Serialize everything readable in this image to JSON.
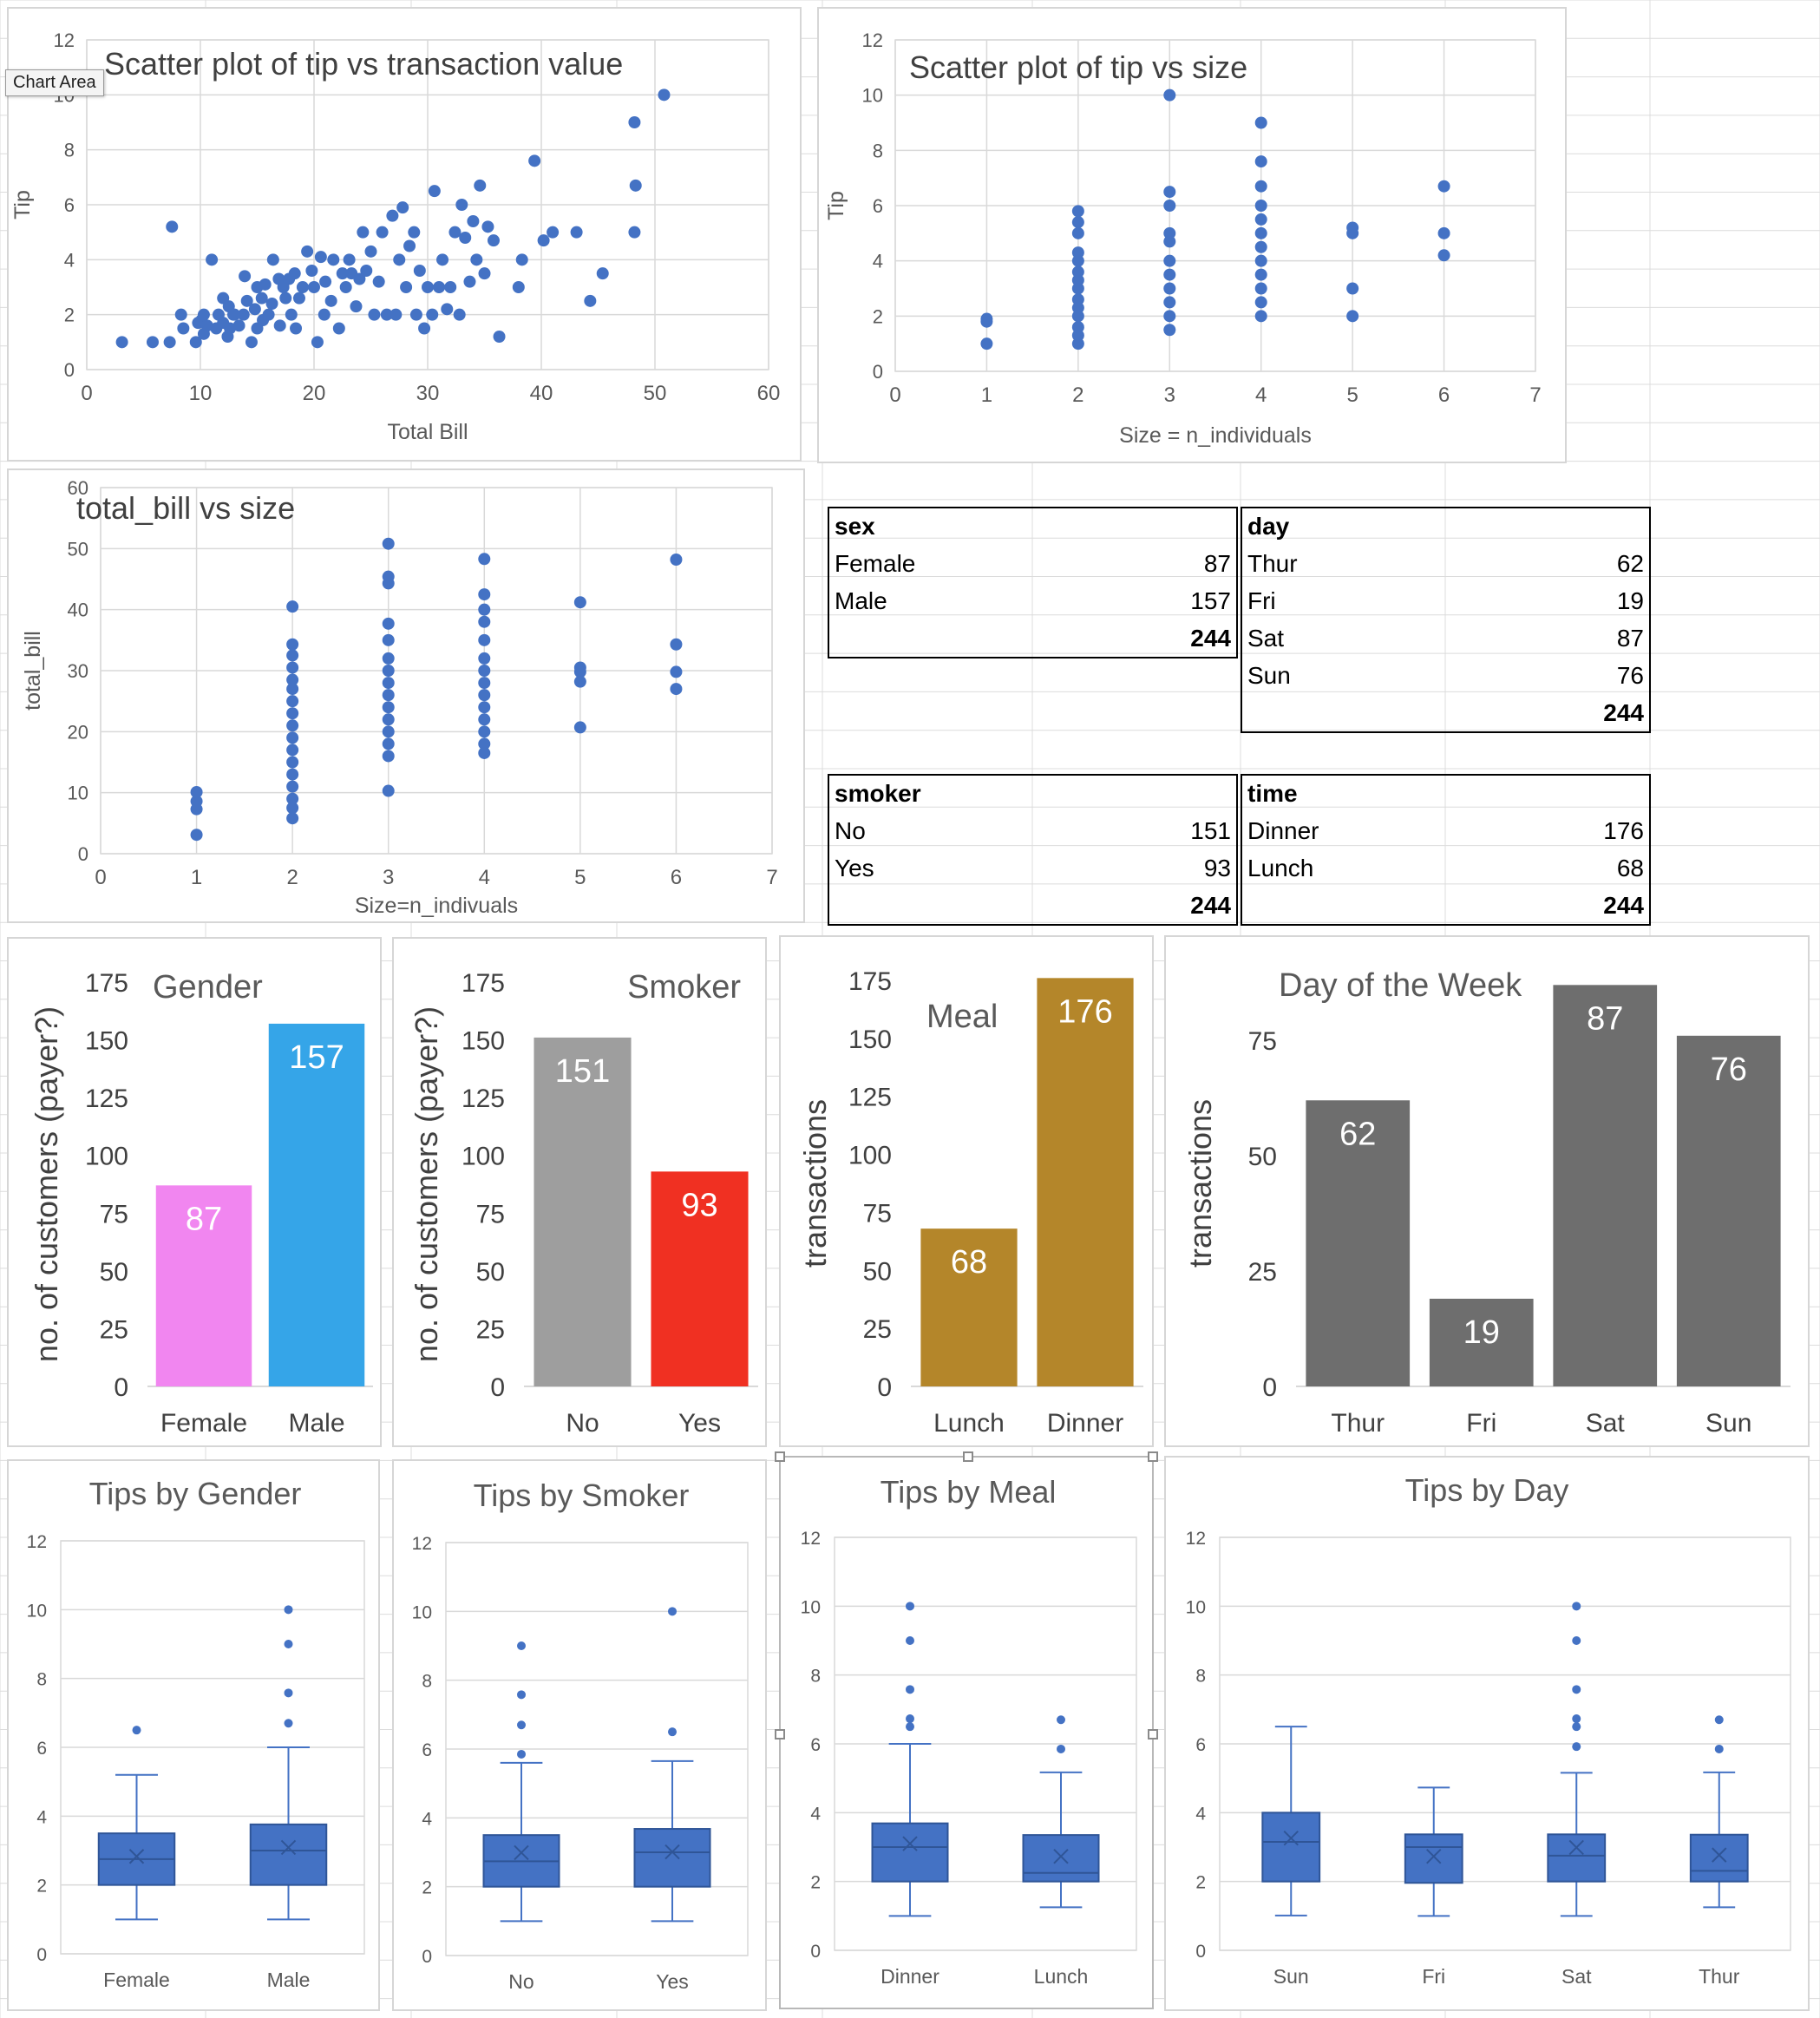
{
  "window": {
    "tooltip": "Chart Area"
  },
  "chart_data": [
    {
      "id": "scatter_tip_bill",
      "type": "scatter",
      "title": "Scatter plot of tip vs transaction value",
      "xlabel": "Total Bill",
      "ylabel": "Tip",
      "xlim": [
        0,
        60
      ],
      "ylim": [
        0,
        12
      ],
      "xticks": [
        0,
        10,
        20,
        30,
        40,
        50,
        60
      ],
      "yticks": [
        0,
        2,
        4,
        6,
        8,
        10,
        12
      ],
      "grid": true,
      "color": "#4472C4",
      "points": [
        [
          3.1,
          1.0
        ],
        [
          5.8,
          1.0
        ],
        [
          7.3,
          1.0
        ],
        [
          7.5,
          5.2
        ],
        [
          8.3,
          2.0
        ],
        [
          8.5,
          1.5
        ],
        [
          9.6,
          1.0
        ],
        [
          9.8,
          1.7
        ],
        [
          10.1,
          1.8
        ],
        [
          10.3,
          1.3
        ],
        [
          10.3,
          2.0
        ],
        [
          10.6,
          1.6
        ],
        [
          11.0,
          4.0
        ],
        [
          11.4,
          1.5
        ],
        [
          11.6,
          2.0
        ],
        [
          12.0,
          1.7
        ],
        [
          12.0,
          2.6
        ],
        [
          12.4,
          1.2
        ],
        [
          12.5,
          2.3
        ],
        [
          12.6,
          1.5
        ],
        [
          12.9,
          2.0
        ],
        [
          13.0,
          2.0
        ],
        [
          13.4,
          1.6
        ],
        [
          13.8,
          2.0
        ],
        [
          13.9,
          3.4
        ],
        [
          14.1,
          2.5
        ],
        [
          14.5,
          1.0
        ],
        [
          14.8,
          2.2
        ],
        [
          15.0,
          1.5
        ],
        [
          15.0,
          3.0
        ],
        [
          15.4,
          2.6
        ],
        [
          15.5,
          1.8
        ],
        [
          15.7,
          3.1
        ],
        [
          16.0,
          2.0
        ],
        [
          16.3,
          2.4
        ],
        [
          16.4,
          4.0
        ],
        [
          16.9,
          3.3
        ],
        [
          17.0,
          1.6
        ],
        [
          17.3,
          3.0
        ],
        [
          17.5,
          2.6
        ],
        [
          17.8,
          3.3
        ],
        [
          18.0,
          2.0
        ],
        [
          18.3,
          3.5
        ],
        [
          18.4,
          1.5
        ],
        [
          18.7,
          2.6
        ],
        [
          19.0,
          3.0
        ],
        [
          19.4,
          4.3
        ],
        [
          19.8,
          3.6
        ],
        [
          20.0,
          3.0
        ],
        [
          20.3,
          1.0
        ],
        [
          20.6,
          4.1
        ],
        [
          20.9,
          2.0
        ],
        [
          21.0,
          3.2
        ],
        [
          21.5,
          2.5
        ],
        [
          21.7,
          4.0
        ],
        [
          22.2,
          1.5
        ],
        [
          22.5,
          3.5
        ],
        [
          22.8,
          3.0
        ],
        [
          23.1,
          4.0
        ],
        [
          23.3,
          3.5
        ],
        [
          23.7,
          2.3
        ],
        [
          24.0,
          3.3
        ],
        [
          24.3,
          5.0
        ],
        [
          24.6,
          3.6
        ],
        [
          25.0,
          4.3
        ],
        [
          25.3,
          2.0
        ],
        [
          25.7,
          3.2
        ],
        [
          26.0,
          5.0
        ],
        [
          26.4,
          2.0
        ],
        [
          26.9,
          5.6
        ],
        [
          27.2,
          2.0
        ],
        [
          27.5,
          4.0
        ],
        [
          27.8,
          5.9
        ],
        [
          28.1,
          3.0
        ],
        [
          28.4,
          4.5
        ],
        [
          28.8,
          5.0
        ],
        [
          29.0,
          2.0
        ],
        [
          29.3,
          3.6
        ],
        [
          29.7,
          1.5
        ],
        [
          30.0,
          3.0
        ],
        [
          30.4,
          2.0
        ],
        [
          30.6,
          6.5
        ],
        [
          31.0,
          3.0
        ],
        [
          31.3,
          4.0
        ],
        [
          31.7,
          2.2
        ],
        [
          32.0,
          3.0
        ],
        [
          32.4,
          5.0
        ],
        [
          32.8,
          2.0
        ],
        [
          33.0,
          6.0
        ],
        [
          33.3,
          4.8
        ],
        [
          33.7,
          3.2
        ],
        [
          34.0,
          5.4
        ],
        [
          34.3,
          4.0
        ],
        [
          34.6,
          6.7
        ],
        [
          35.0,
          3.5
        ],
        [
          35.3,
          5.2
        ],
        [
          35.8,
          4.7
        ],
        [
          36.3,
          1.2
        ],
        [
          38.0,
          3.0
        ],
        [
          38.3,
          4.0
        ],
        [
          39.4,
          7.6
        ],
        [
          40.2,
          4.7
        ],
        [
          41.0,
          5.0
        ],
        [
          43.1,
          5.0
        ],
        [
          44.3,
          2.5
        ],
        [
          45.4,
          3.5
        ],
        [
          48.2,
          5.0
        ],
        [
          48.2,
          9.0
        ],
        [
          48.3,
          6.7
        ],
        [
          50.8,
          10.0
        ]
      ]
    },
    {
      "id": "scatter_tip_size",
      "type": "scatter",
      "title": "Scatter plot of tip vs size",
      "xlabel": "Size = n_individuals",
      "ylabel": "Tip",
      "xlim": [
        0,
        7
      ],
      "ylim": [
        0,
        12
      ],
      "xticks": [
        0,
        1,
        2,
        3,
        4,
        5,
        6,
        7
      ],
      "yticks": [
        0,
        2,
        4,
        6,
        8,
        10,
        12
      ],
      "grid": true,
      "color": "#4472C4",
      "points": [
        [
          1,
          1.0
        ],
        [
          1,
          1.8
        ],
        [
          1,
          1.9
        ],
        [
          2,
          1.0
        ],
        [
          2,
          1.3
        ],
        [
          2,
          1.6
        ],
        [
          2,
          2.0
        ],
        [
          2,
          2.3
        ],
        [
          2,
          2.6
        ],
        [
          2,
          3.0
        ],
        [
          2,
          3.3
        ],
        [
          2,
          3.6
        ],
        [
          2,
          4.0
        ],
        [
          2,
          4.3
        ],
        [
          2,
          5.0
        ],
        [
          2,
          5.4
        ],
        [
          2,
          5.8
        ],
        [
          3,
          1.5
        ],
        [
          3,
          2.0
        ],
        [
          3,
          2.5
        ],
        [
          3,
          3.0
        ],
        [
          3,
          3.5
        ],
        [
          3,
          4.0
        ],
        [
          3,
          4.7
        ],
        [
          3,
          5.0
        ],
        [
          3,
          6.0
        ],
        [
          3,
          6.5
        ],
        [
          3,
          10.0
        ],
        [
          4,
          2.0
        ],
        [
          4,
          2.5
        ],
        [
          4,
          3.0
        ],
        [
          4,
          3.5
        ],
        [
          4,
          4.0
        ],
        [
          4,
          4.5
        ],
        [
          4,
          5.0
        ],
        [
          4,
          5.5
        ],
        [
          4,
          6.0
        ],
        [
          4,
          6.7
        ],
        [
          4,
          7.6
        ],
        [
          4,
          9.0
        ],
        [
          5,
          2.0
        ],
        [
          5,
          3.0
        ],
        [
          5,
          5.0
        ],
        [
          5,
          5.2
        ],
        [
          6,
          4.2
        ],
        [
          6,
          5.0
        ],
        [
          6,
          6.7
        ]
      ]
    },
    {
      "id": "scatter_bill_size",
      "type": "scatter",
      "title": "total_bill vs size",
      "xlabel": "Size=n_indivuals",
      "ylabel": "total_bill",
      "xlim": [
        0,
        7
      ],
      "ylim": [
        0,
        60
      ],
      "xticks": [
        0,
        1,
        2,
        3,
        4,
        5,
        6,
        7
      ],
      "yticks": [
        0,
        10,
        20,
        30,
        40,
        50,
        60
      ],
      "grid": true,
      "color": "#4472C4",
      "points": [
        [
          1,
          3.1
        ],
        [
          1,
          7.3
        ],
        [
          1,
          8.6
        ],
        [
          1,
          10.1
        ],
        [
          2,
          5.8
        ],
        [
          2,
          7.5
        ],
        [
          2,
          9.0
        ],
        [
          2,
          11.0
        ],
        [
          2,
          13.0
        ],
        [
          2,
          15.0
        ],
        [
          2,
          17.0
        ],
        [
          2,
          19.0
        ],
        [
          2,
          21.0
        ],
        [
          2,
          23.0
        ],
        [
          2,
          25.0
        ],
        [
          2,
          27.0
        ],
        [
          2,
          28.5
        ],
        [
          2,
          30.5
        ],
        [
          2,
          32.5
        ],
        [
          2,
          34.3
        ],
        [
          2,
          40.5
        ],
        [
          3,
          10.3
        ],
        [
          3,
          16.0
        ],
        [
          3,
          18.0
        ],
        [
          3,
          20.0
        ],
        [
          3,
          22.0
        ],
        [
          3,
          24.0
        ],
        [
          3,
          26.0
        ],
        [
          3,
          28.0
        ],
        [
          3,
          30.0
        ],
        [
          3,
          32.0
        ],
        [
          3,
          35.0
        ],
        [
          3,
          37.7
        ],
        [
          3,
          44.3
        ],
        [
          3,
          45.4
        ],
        [
          3,
          50.8
        ],
        [
          4,
          16.5
        ],
        [
          4,
          18.0
        ],
        [
          4,
          20.0
        ],
        [
          4,
          22.0
        ],
        [
          4,
          24.0
        ],
        [
          4,
          26.0
        ],
        [
          4,
          28.0
        ],
        [
          4,
          30.0
        ],
        [
          4,
          32.0
        ],
        [
          4,
          35.0
        ],
        [
          4,
          38.0
        ],
        [
          4,
          40.0
        ],
        [
          4,
          42.5
        ],
        [
          4,
          48.3
        ],
        [
          5,
          20.7
        ],
        [
          5,
          28.2
        ],
        [
          5,
          29.8
        ],
        [
          5,
          30.5
        ],
        [
          5,
          41.2
        ],
        [
          6,
          27.0
        ],
        [
          6,
          29.8
        ],
        [
          6,
          34.3
        ],
        [
          6,
          48.2
        ]
      ]
    },
    {
      "id": "bar_gender",
      "type": "bar",
      "title": "Gender",
      "ylabel": "no. of customers (payer?)",
      "categories": [
        "Female",
        "Male"
      ],
      "values": [
        87,
        157
      ],
      "colors": [
        "#F186F0",
        "#35A5E8"
      ],
      "ylim": [
        0,
        175
      ],
      "yticks": [
        0,
        25,
        50,
        75,
        100,
        125,
        150,
        175
      ],
      "grid": false
    },
    {
      "id": "bar_smoker",
      "type": "bar",
      "title": "Smoker",
      "ylabel": "no. of customers (payer?)",
      "categories": [
        "No",
        "Yes"
      ],
      "values": [
        151,
        93
      ],
      "colors": [
        "#9E9E9E",
        "#F03022"
      ],
      "ylim": [
        0,
        175
      ],
      "yticks": [
        0,
        25,
        50,
        75,
        100,
        125,
        150,
        175
      ],
      "grid": false
    },
    {
      "id": "bar_meal",
      "type": "bar",
      "title": "Meal",
      "ylabel": "transactions",
      "categories": [
        "Lunch",
        "Dinner"
      ],
      "values": [
        68,
        176
      ],
      "colors": [
        "#B4862A",
        "#B4862A"
      ],
      "ylim": [
        0,
        175
      ],
      "yticks": [
        0,
        25,
        50,
        75,
        100,
        125,
        150,
        175
      ],
      "grid": false
    },
    {
      "id": "bar_day",
      "type": "bar",
      "title": "Day of the Week",
      "ylabel": "transactions",
      "categories": [
        "Thur",
        "Fri",
        "Sat",
        "Sun"
      ],
      "values": [
        62,
        19,
        87,
        76
      ],
      "colors": [
        "#6E6E6E",
        "#6E6E6E",
        "#6E6E6E",
        "#6E6E6E"
      ],
      "ylim": [
        0,
        88
      ],
      "yticks": [
        0,
        25,
        50,
        75
      ],
      "grid": false
    },
    {
      "id": "box_gender",
      "type": "box",
      "title": "Tips by Gender",
      "ylim": [
        0,
        12
      ],
      "yticks": [
        0,
        2,
        4,
        6,
        8,
        10,
        12
      ],
      "grid": true,
      "color": "#4472C4",
      "groups": [
        {
          "label": "Female",
          "min": 1.0,
          "q1": 2.0,
          "median": 2.75,
          "q3": 3.5,
          "max": 5.2,
          "mean": 2.83,
          "outliers": [
            6.5
          ]
        },
        {
          "label": "Male",
          "min": 1.0,
          "q1": 2.0,
          "median": 3.0,
          "q3": 3.76,
          "max": 6.0,
          "mean": 3.09,
          "outliers": [
            6.7,
            7.58,
            9.0,
            10.0
          ]
        }
      ]
    },
    {
      "id": "box_smoker",
      "type": "box",
      "title": "Tips by Smoker",
      "ylim": [
        0,
        12
      ],
      "yticks": [
        0,
        2,
        4,
        6,
        8,
        10,
        12
      ],
      "grid": true,
      "color": "#4472C4",
      "groups": [
        {
          "label": "No",
          "min": 1.0,
          "q1": 2.0,
          "median": 2.74,
          "q3": 3.5,
          "max": 5.6,
          "mean": 2.99,
          "outliers": [
            5.85,
            6.7,
            7.58,
            9.0
          ]
        },
        {
          "label": "Yes",
          "min": 1.0,
          "q1": 2.0,
          "median": 3.0,
          "q3": 3.68,
          "max": 5.65,
          "mean": 3.01,
          "outliers": [
            6.5,
            10.0
          ]
        }
      ]
    },
    {
      "id": "box_meal",
      "type": "box",
      "title": "Tips by Meal",
      "ylim": [
        0,
        12
      ],
      "yticks": [
        0,
        2,
        4,
        6,
        8,
        10,
        12
      ],
      "grid": true,
      "color": "#4472C4",
      "groups": [
        {
          "label": "Dinner",
          "min": 1.0,
          "q1": 2.0,
          "median": 3.0,
          "q3": 3.69,
          "max": 6.0,
          "mean": 3.1,
          "outliers": [
            6.5,
            6.73,
            7.58,
            9.0,
            10.0
          ]
        },
        {
          "label": "Lunch",
          "min": 1.25,
          "q1": 2.0,
          "median": 2.25,
          "q3": 3.35,
          "max": 5.17,
          "mean": 2.73,
          "outliers": [
            5.85,
            6.7
          ]
        }
      ]
    },
    {
      "id": "box_day",
      "type": "box",
      "title": "Tips by Day",
      "ylim": [
        0,
        12
      ],
      "yticks": [
        0,
        2,
        4,
        6,
        8,
        10,
        12
      ],
      "grid": true,
      "color": "#4472C4",
      "groups": [
        {
          "label": "Sun",
          "min": 1.01,
          "q1": 2.0,
          "median": 3.15,
          "q3": 4.0,
          "max": 6.5,
          "mean": 3.26,
          "outliers": []
        },
        {
          "label": "Fri",
          "min": 1.0,
          "q1": 1.96,
          "median": 3.0,
          "q3": 3.37,
          "max": 4.73,
          "mean": 2.73,
          "outliers": []
        },
        {
          "label": "Sat",
          "min": 1.0,
          "q1": 2.0,
          "median": 2.75,
          "q3": 3.37,
          "max": 5.16,
          "mean": 2.99,
          "outliers": [
            5.92,
            6.5,
            6.73,
            7.58,
            9.0,
            10.0
          ]
        },
        {
          "label": "Thur",
          "min": 1.25,
          "q1": 2.0,
          "median": 2.31,
          "q3": 3.36,
          "max": 5.17,
          "mean": 2.77,
          "outliers": [
            5.85,
            6.7
          ]
        }
      ]
    }
  ],
  "tables": {
    "sex": {
      "header": "sex",
      "rows": [
        [
          "Female",
          "87"
        ],
        [
          "Male",
          "157"
        ]
      ],
      "total": "244"
    },
    "day": {
      "header": "day",
      "rows": [
        [
          "Thur",
          "62"
        ],
        [
          "Fri",
          "19"
        ],
        [
          "Sat",
          "87"
        ],
        [
          "Sun",
          "76"
        ]
      ],
      "total": "244"
    },
    "smoker": {
      "header": "smoker",
      "rows": [
        [
          "No",
          "151"
        ],
        [
          "Yes",
          "93"
        ]
      ],
      "total": "244"
    },
    "time": {
      "header": "time",
      "rows": [
        [
          "Dinner",
          "176"
        ],
        [
          "Lunch",
          "68"
        ]
      ],
      "total": "244"
    }
  }
}
